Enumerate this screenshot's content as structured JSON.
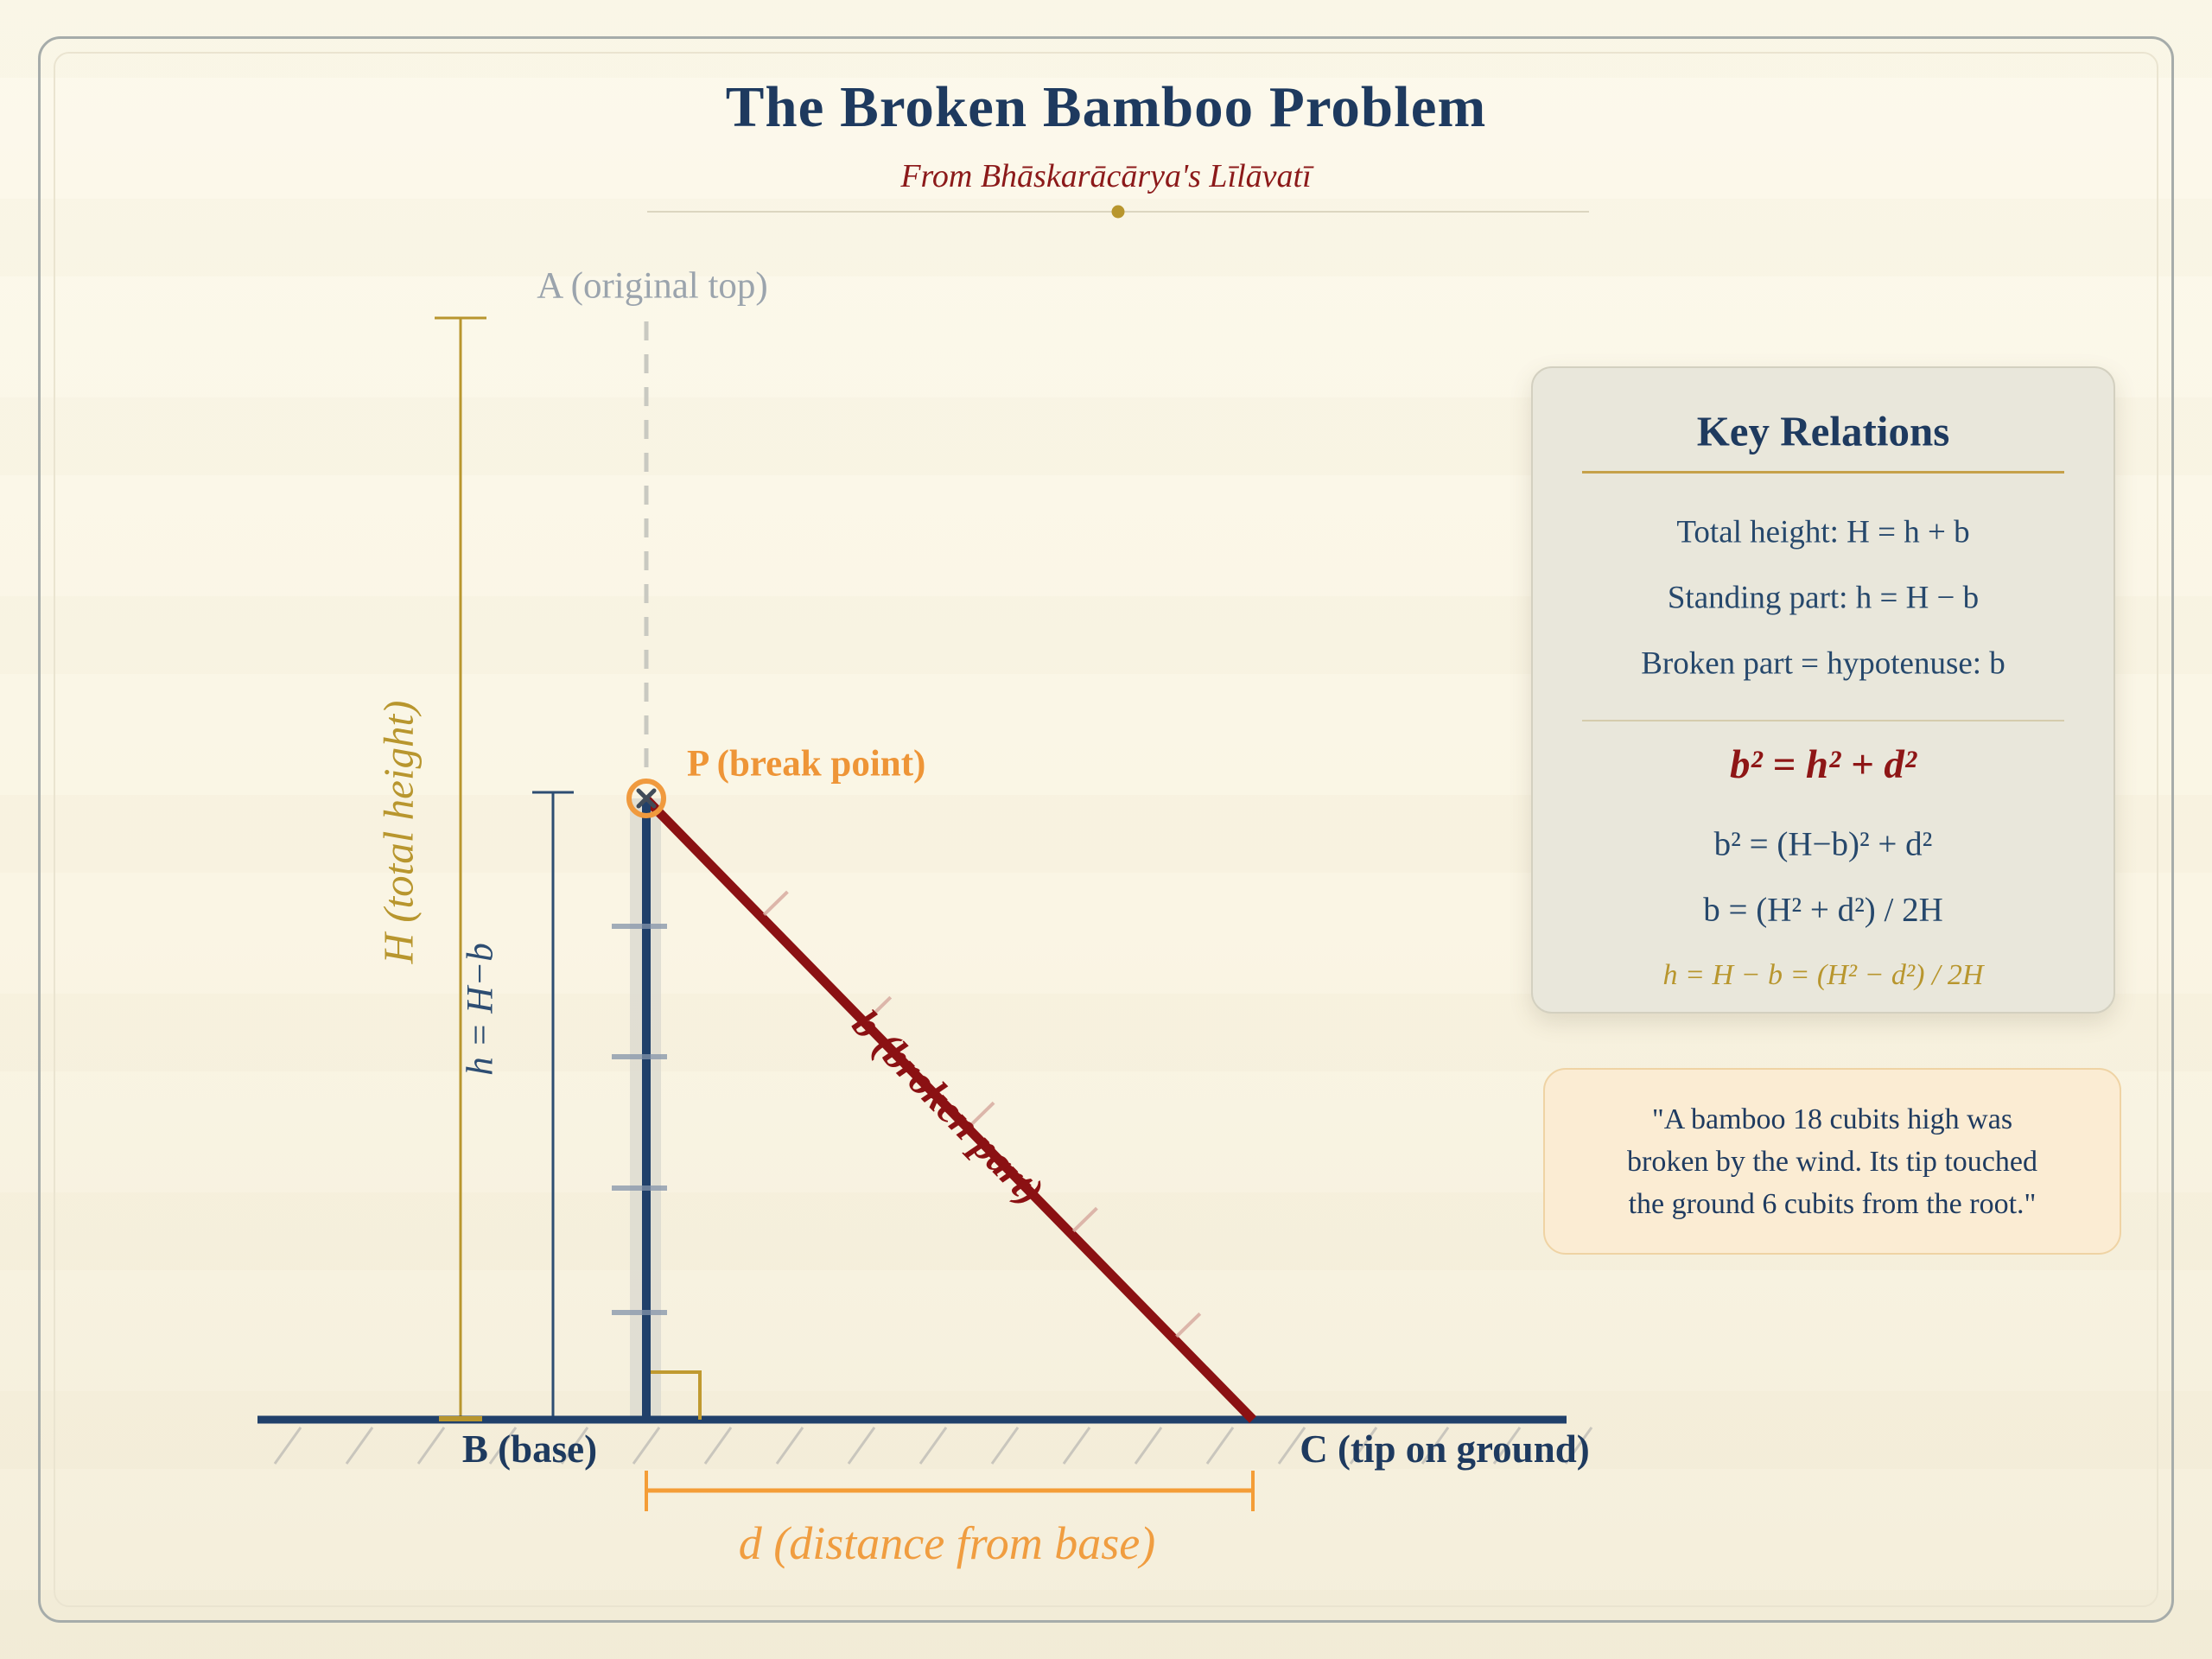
{
  "colors": {
    "navy": "#1e3a5f",
    "formula-navy": "#26486c",
    "steel": "#2d4d72",
    "dark-red": "#8b1113",
    "gold": "#b8962e",
    "orange": "#ee9537",
    "label-gray": "#9ba4ad"
  },
  "header": {
    "title": "The Broken Bamboo Problem",
    "subtitle": "From Bhāskarācārya's Līlāvatī"
  },
  "diagram": {
    "point_a": "A (original top)",
    "point_p": "P (break point)",
    "hypotenuse": "b (broken part)",
    "total_height": "H (total height)",
    "standing_part": "h = H−b",
    "point_b": "B (base)",
    "point_c": "C (tip on ground)",
    "distance": "d (distance from base)"
  },
  "key_relations": {
    "title": "Key Relations",
    "relations": [
      "Total height: H = h + b",
      "Standing part: h = H − b",
      "Broken part = hypotenuse: b"
    ],
    "pythagorean": "b² = h² + d²",
    "derivations": [
      "b² = (H−b)² + d²",
      "b = (H² + d²) / 2H"
    ],
    "height_solution": "h = H − b = (H² − d²) / 2H"
  },
  "problem": {
    "lines": [
      "\"A bamboo 18 cubits high was",
      "broken by the wind. Its tip touched",
      "the ground 6 cubits from the root.\""
    ]
  }
}
